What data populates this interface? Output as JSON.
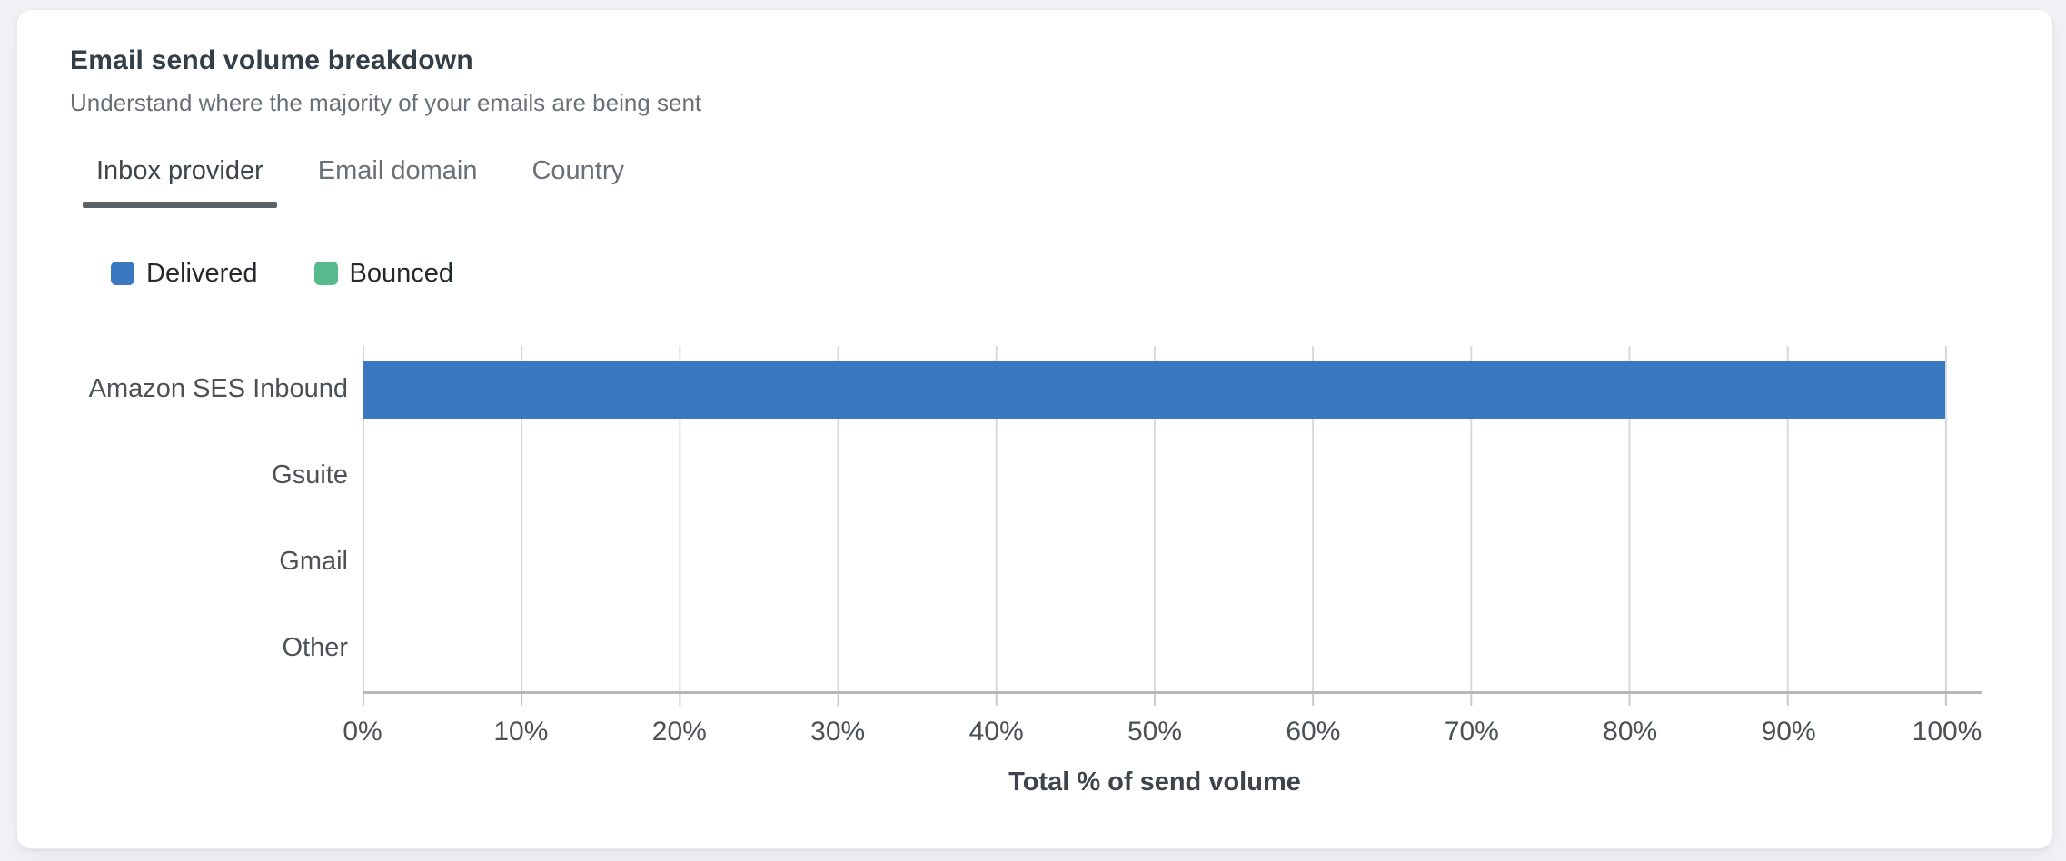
{
  "card": {
    "title": "Email send volume breakdown",
    "subtitle": "Understand where the majority of your emails are being sent"
  },
  "tabs": [
    {
      "label": "Inbox provider",
      "active": true
    },
    {
      "label": "Email domain",
      "active": false
    },
    {
      "label": "Country",
      "active": false
    }
  ],
  "legend": [
    {
      "label": "Delivered",
      "color": "#3B78C2"
    },
    {
      "label": "Bounced",
      "color": "#57B98C"
    }
  ],
  "chart_data": {
    "type": "bar",
    "orientation": "horizontal",
    "title": "Email send volume breakdown",
    "categories": [
      "Amazon SES Inbound",
      "Gsuite",
      "Gmail",
      "Other"
    ],
    "series": [
      {
        "name": "Delivered",
        "color": "#3B78C2",
        "values": [
          100,
          0,
          0,
          0
        ]
      },
      {
        "name": "Bounced",
        "color": "#57B98C",
        "values": [
          0,
          0,
          0,
          0
        ]
      }
    ],
    "xlabel": "Total % of send volume",
    "ylabel": "",
    "xlim": [
      0,
      100
    ],
    "x_tick_labels": [
      "0%",
      "10%",
      "20%",
      "30%",
      "40%",
      "50%",
      "60%",
      "70%",
      "80%",
      "90%",
      "100%"
    ],
    "grid": "vertical-gridlines-on",
    "legend_position": "top-left",
    "colors": {
      "gridline": "#d7d9dc",
      "axis_line": "#b4b7bb",
      "tick_mark": "#c6c9cd",
      "label_text": "#4b5157"
    }
  }
}
